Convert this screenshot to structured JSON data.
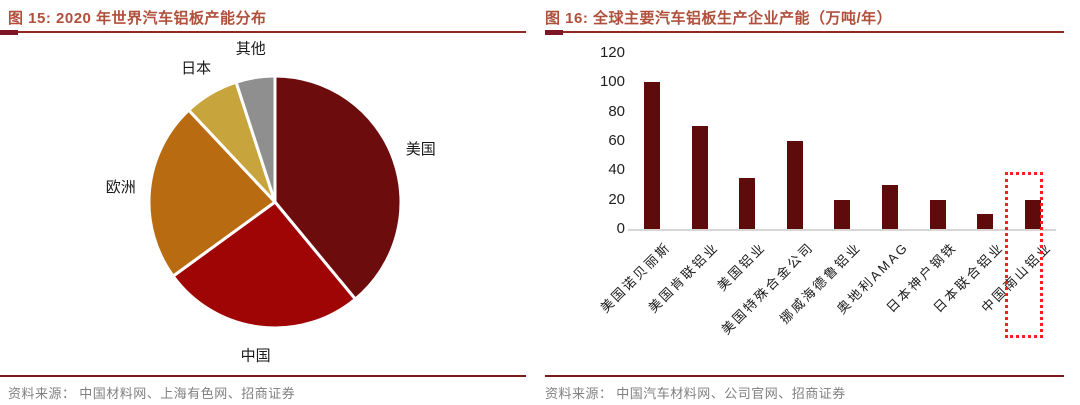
{
  "chart_data": [
    {
      "type": "pie",
      "title": "图 15: 2020 年世界汽车铝板产能分布",
      "labels": [
        "美国",
        "中国",
        "欧洲",
        "日本",
        "其他"
      ],
      "ids": [
        "usa",
        "china",
        "europe",
        "japan",
        "other"
      ],
      "values": [
        39,
        26,
        23,
        7,
        5
      ],
      "unit": "percent-share",
      "colors": [
        "#6D0C0C",
        "#A00505",
        "#B96B11",
        "#C8A43C",
        "#8F8F8F"
      ],
      "start_angle_deg": 0,
      "direction": "clockwise",
      "slice_gap_color": "#FFFFFF",
      "legend": "none",
      "source": "资料来源： 中国材料网、上海有色网、招商证券"
    },
    {
      "type": "bar",
      "title": "图 16: 全球主要汽车铝板生产企业产能（万吨/年）",
      "categories": [
        "美国诺贝丽斯",
        "美国肯联铝业",
        "美国铝业",
        "美国特殊合金公司",
        "挪威海德鲁铝业",
        "奥地利AMAG",
        "日本神户钢铁",
        "日本联合铝业",
        "中国南山铝业"
      ],
      "ids": [
        "novelis",
        "constellium",
        "alcoa",
        "us-specialty-alloy",
        "hydro",
        "amag",
        "kobe-steel",
        "uacj",
        "nanshan"
      ],
      "values": [
        100,
        70,
        35,
        60,
        20,
        30,
        20,
        10,
        20
      ],
      "ylim": [
        0,
        120
      ],
      "y_ticks": [
        0,
        20,
        40,
        60,
        80,
        100,
        120
      ],
      "grid": "off",
      "legend": "none",
      "bar_color": "#5E0B0B",
      "axis_color": "#D6D6D6",
      "highlight": {
        "category": "中国南山铝业",
        "style": "red-dotted-box",
        "color": "#FA1E1E"
      },
      "source": "资料来源： 中国汽车材料网、公司官网、招商证券"
    }
  ],
  "accent": {
    "title_color": "#B0503C",
    "rule_color": "#94291F",
    "bottom_rule_color": "#7A1A1A"
  }
}
